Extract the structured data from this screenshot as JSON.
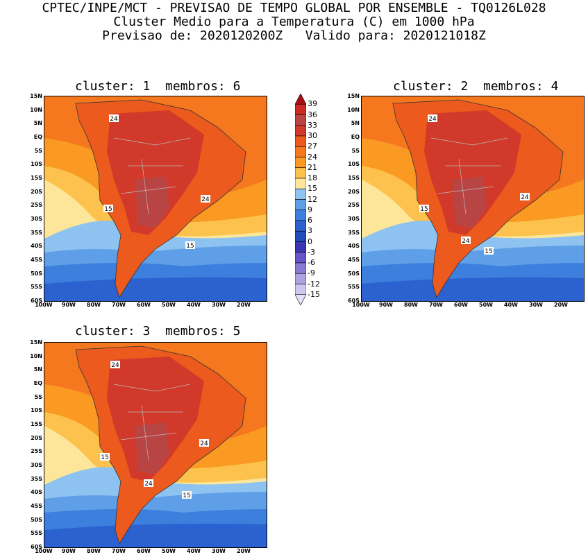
{
  "header": {
    "line1": "CPTEC/INPE/MCT - PREVISAO DE TEMPO GLOBAL POR ENSEMBLE - TQ0126L028",
    "line2": "Cluster Medio para a Temperatura (C) em 1000 hPa",
    "line3": "Previsao de: 2020120200Z   Valido para: 2020121018Z"
  },
  "panels": [
    {
      "title": "cluster: 1  membros: 6",
      "contour_labels": [
        "24",
        "24",
        "15",
        "15"
      ]
    },
    {
      "title": "cluster: 2  membros: 4",
      "contour_labels": [
        "24",
        "24",
        "15",
        "24",
        "15"
      ]
    },
    {
      "title": "cluster: 3  membros: 5",
      "contour_labels": [
        "24",
        "24",
        "15",
        "24",
        "15"
      ]
    }
  ],
  "axes": {
    "lat_ticks": [
      "15N",
      "10N",
      "5N",
      "EQ",
      "5S",
      "10S",
      "15S",
      "20S",
      "25S",
      "30S",
      "35S",
      "40S",
      "45S",
      "50S",
      "55S",
      "60S"
    ],
    "lon_ticks": [
      "100W",
      "90W",
      "80W",
      "70W",
      "60W",
      "50W",
      "40W",
      "30W",
      "20W"
    ]
  },
  "colorbar": {
    "labels": [
      "39",
      "36",
      "33",
      "30",
      "27",
      "24",
      "21",
      "18",
      "15",
      "12",
      "9",
      "6",
      "3",
      "0",
      "-3",
      "-6",
      "-9",
      "-12",
      "-15"
    ],
    "colors": [
      "#a50f15",
      "#cb2a25",
      "#b94444",
      "#d13a2a",
      "#ec5a1e",
      "#f5771e",
      "#fa9a22",
      "#fcc24d",
      "#fde69a",
      "#8ec2f0",
      "#5f9fe8",
      "#3d7fdd",
      "#2b62cf",
      "#1f4cb8",
      "#3d34b0",
      "#6655c8",
      "#8a7ad6",
      "#aea2e3",
      "#cfc7f0",
      "#e6e1f8"
    ]
  }
}
